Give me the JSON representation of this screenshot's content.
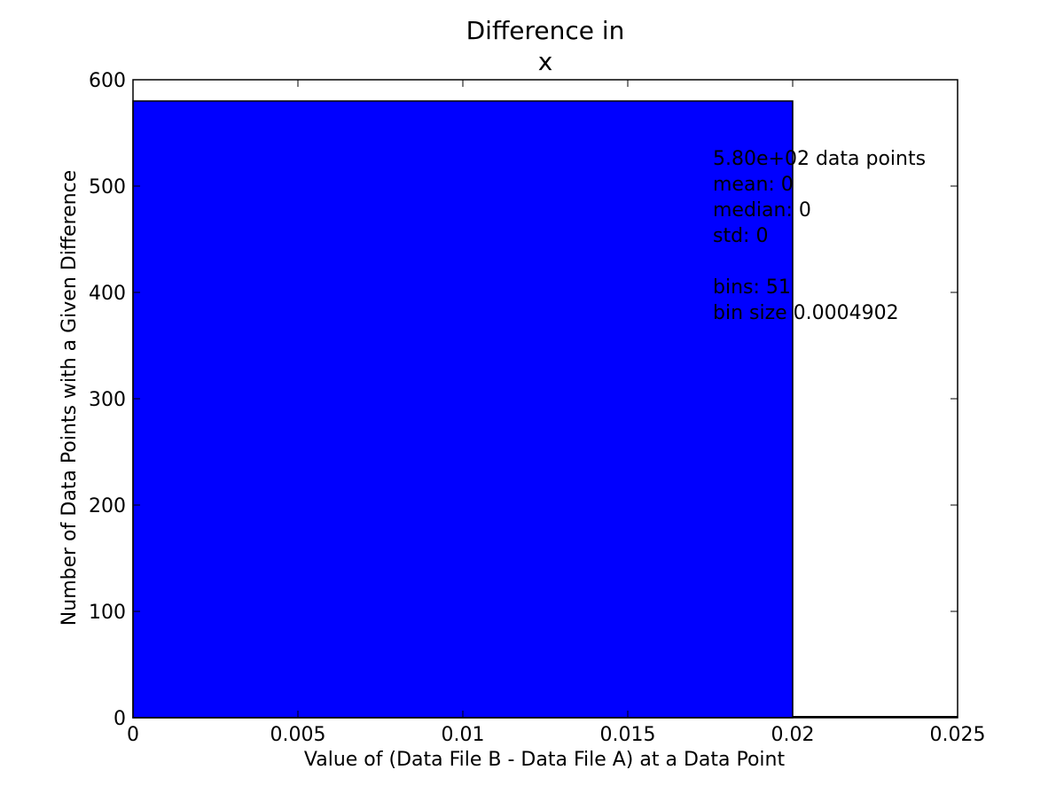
{
  "chart_data": {
    "type": "bar",
    "title_lines": [
      "Difference in",
      "x"
    ],
    "xlabel": "Value of (Data File B - Data File A) at a Data Point",
    "ylabel": "Number of Data Points with a Given Difference",
    "xlim": [
      0,
      0.025
    ],
    "ylim": [
      0,
      600
    ],
    "x_ticks": [
      {
        "value": 0,
        "label": "0"
      },
      {
        "value": 0.005,
        "label": "0.005"
      },
      {
        "value": 0.01,
        "label": "0.01"
      },
      {
        "value": 0.015,
        "label": "0.015"
      },
      {
        "value": 0.02,
        "label": "0.02"
      },
      {
        "value": 0.025,
        "label": "0.025"
      }
    ],
    "y_ticks": [
      {
        "value": 0,
        "label": "0"
      },
      {
        "value": 100,
        "label": "100"
      },
      {
        "value": 200,
        "label": "200"
      },
      {
        "value": 300,
        "label": "300"
      },
      {
        "value": 400,
        "label": "400"
      },
      {
        "value": 500,
        "label": "500"
      },
      {
        "value": 600,
        "label": "600"
      }
    ],
    "bars": [
      {
        "x_start": 0,
        "x_end": 0.02,
        "value": 580
      }
    ],
    "baseline_extends_to": 0.025,
    "bar_color": "#0000ff",
    "annotation_lines": [
      "5.80e+02 data points",
      "mean: 0",
      "median: 0",
      "std: 0",
      "",
      "bins: 51",
      "bin size 0.0004902"
    ],
    "grid": false
  }
}
